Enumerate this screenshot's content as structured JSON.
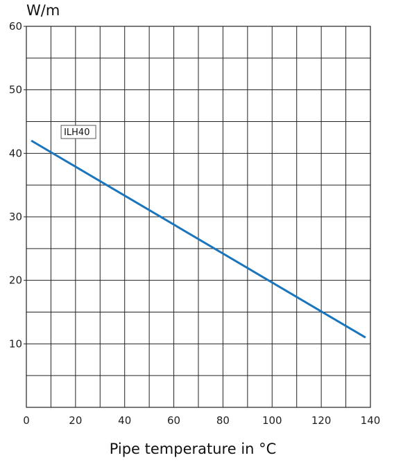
{
  "chart_data": {
    "type": "line",
    "xlabel": "Pipe temperature in °C",
    "ylabel": "W/m",
    "xlim": [
      0,
      140
    ],
    "ylim": [
      0,
      60
    ],
    "x_ticks": [
      "0",
      "20",
      "40",
      "60",
      "80",
      "100",
      "120",
      "140"
    ],
    "y_ticks": [
      "10",
      "20",
      "30",
      "40",
      "50",
      "60"
    ],
    "grid": true,
    "series": [
      {
        "name": "ILH40",
        "color": "#1a75bc",
        "x": [
          2,
          138
        ],
        "y": [
          42,
          11
        ]
      }
    ]
  }
}
